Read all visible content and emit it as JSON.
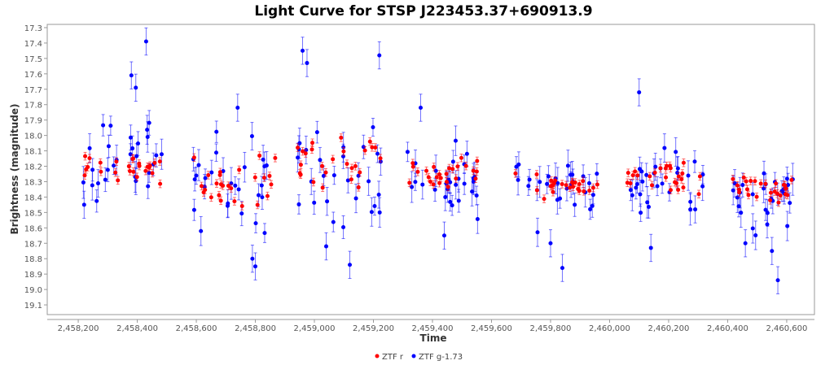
{
  "chart_data": {
    "type": "scatter",
    "title": "Light Curve for STSP J223453.37+690913.9",
    "xlabel": "Time",
    "ylabel": "Brightness (magnitude)",
    "xlim": [
      2458095,
      2460694
    ],
    "ylim": [
      19.163,
      17.279
    ],
    "y_inverted": true,
    "grid": false,
    "legend_position": "bottom",
    "xticks": [
      2458200,
      2458400,
      2458600,
      2458800,
      2459000,
      2459200,
      2459400,
      2459600,
      2459800,
      2460000,
      2460200,
      2460400,
      2460600
    ],
    "xtick_labels": [
      "2,458,200",
      "2,458,400",
      "2,458,600",
      "2,458,800",
      "2,459,000",
      "2,459,200",
      "2,459,400",
      "2,459,600",
      "2,459,800",
      "2,460,000",
      "2,460,200",
      "2,460,400",
      "2,460,600"
    ],
    "yticks": [
      "17.3",
      "17.4",
      "17.5",
      "17.6",
      "17.7",
      "17.8",
      "17.9",
      "18.0",
      "18.1",
      "18.2",
      "18.3",
      "18.4",
      "18.5",
      "18.6",
      "18.7",
      "18.8",
      "18.9",
      "19.0",
      "19.1"
    ],
    "seasons": [
      {
        "range": [
          2458215,
          2458490
        ],
        "r_mean": 18.2,
        "r_sd": 0.1,
        "g_mean": 18.15,
        "g_sd": 0.2,
        "g_out": [
          [
            2458430,
            17.39
          ],
          [
            2458380,
            17.61
          ],
          [
            2458395,
            17.69
          ],
          [
            2458220,
            18.45
          ]
        ]
      },
      {
        "range": [
          2458585,
          2458885
        ],
        "r_mean": 18.3,
        "r_sd": 0.12,
        "g_mean": 18.3,
        "g_sd": 0.2,
        "g_out": [
          [
            2458790,
            18.8
          ],
          [
            2458800,
            18.85
          ],
          [
            2458740,
            17.82
          ]
        ]
      },
      {
        "range": [
          2458940,
          2459230
        ],
        "r_mean": 18.2,
        "r_sd": 0.12,
        "g_mean": 18.25,
        "g_sd": 0.25,
        "g_out": [
          [
            2458960,
            17.45
          ],
          [
            2458975,
            17.53
          ],
          [
            2459220,
            17.48
          ],
          [
            2459120,
            18.84
          ],
          [
            2459040,
            18.72
          ]
        ]
      },
      {
        "range": [
          2459315,
          2459560
        ],
        "r_mean": 18.25,
        "r_sd": 0.07,
        "g_mean": 18.3,
        "g_sd": 0.17,
        "g_out": [
          [
            2459360,
            17.82
          ],
          [
            2459440,
            18.65
          ]
        ]
      },
      {
        "range": [
          2459680,
          2459960
        ],
        "r_mean": 18.32,
        "r_sd": 0.05,
        "g_mean": 18.35,
        "g_sd": 0.14,
        "g_out": [
          [
            2459840,
            18.86
          ],
          [
            2459800,
            18.7
          ]
        ]
      },
      {
        "range": [
          2460060,
          2460320
        ],
        "r_mean": 18.28,
        "r_sd": 0.08,
        "g_mean": 18.3,
        "g_sd": 0.17,
        "g_out": [
          [
            2460100,
            17.72
          ],
          [
            2460140,
            18.73
          ],
          [
            2460290,
            18.48
          ]
        ]
      },
      {
        "range": [
          2460415,
          2460625
        ],
        "r_mean": 18.35,
        "r_sd": 0.07,
        "g_mean": 18.4,
        "g_sd": 0.17,
        "g_out": [
          [
            2460570,
            18.94
          ],
          [
            2460460,
            18.7
          ],
          [
            2460550,
            18.75
          ]
        ]
      }
    ],
    "series": [
      {
        "name": "ZTF r",
        "color": "#ff0000",
        "err": 0.025,
        "key": "r"
      },
      {
        "name": "ZTF g-1.73",
        "color": "#0000ff",
        "err": 0.08,
        "key": "g"
      }
    ]
  }
}
